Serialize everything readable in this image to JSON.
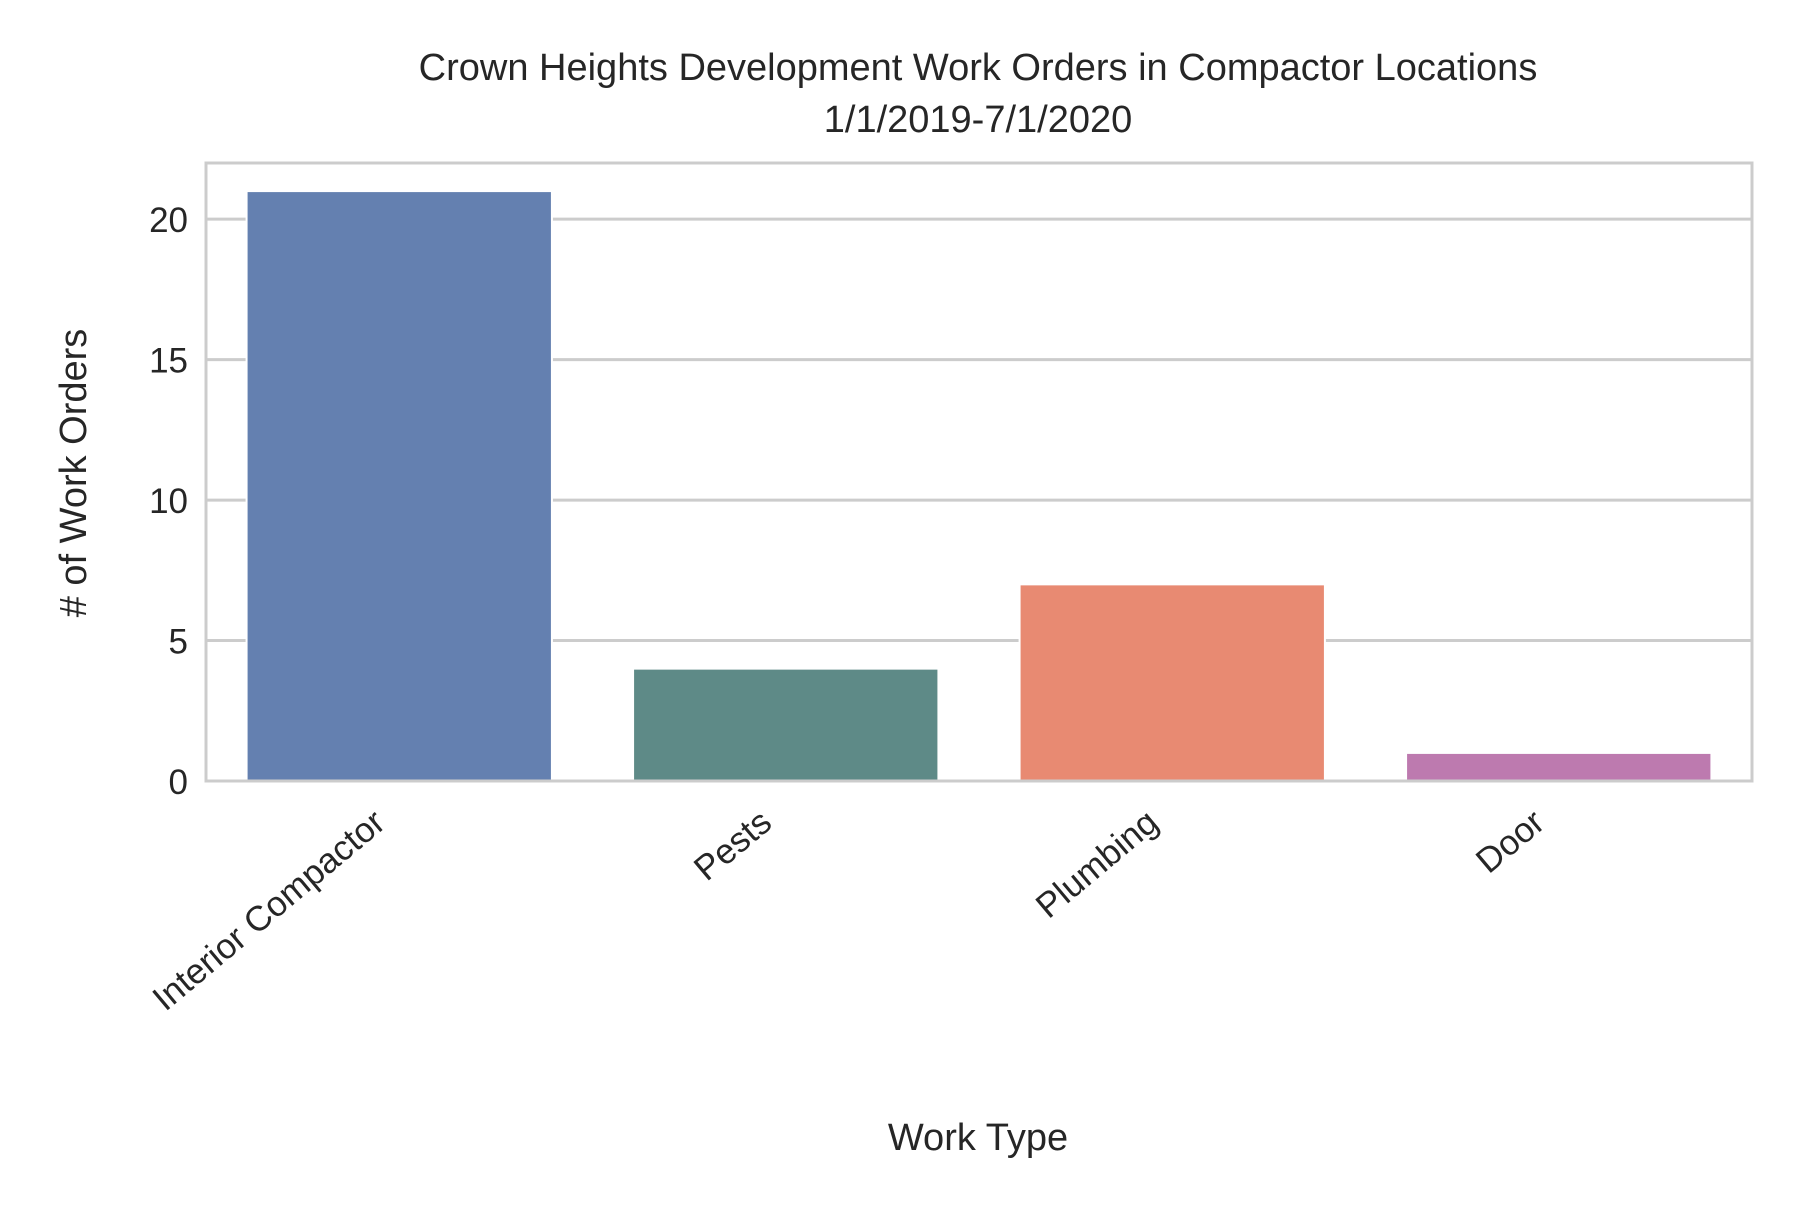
{
  "chart_data": {
    "type": "bar",
    "title": "Crown Heights Development Work Orders in Compactor Locations",
    "subtitle": "1/1/2019-7/1/2020",
    "xlabel": "Work Type",
    "ylabel": "# of Work Orders",
    "categories": [
      "Interior Compactor",
      "Pests",
      "Plumbing",
      "Door"
    ],
    "values": [
      21,
      4,
      7,
      1
    ],
    "colors": [
      "#6480b0",
      "#5e8a87",
      "#e88a72",
      "#bd7aaf"
    ],
    "ylim": [
      0,
      22
    ],
    "yticks": [
      0,
      5,
      10,
      15,
      20
    ],
    "grid": "horizontal",
    "legend": "none"
  }
}
